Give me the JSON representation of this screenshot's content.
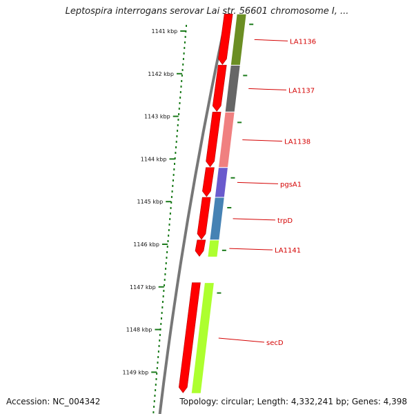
{
  "title": "Leptospira interrogans serovar Lai str. 56601 chromosome I, ...",
  "accession": "Accession: NC_004342",
  "summary": "Topology: circular; Length: 4,332,241 bp; Genes: 4,398",
  "scale": {
    "unit": "kbp",
    "ticks": [
      {
        "kbp": 1141,
        "label": "1141 kbp"
      },
      {
        "kbp": 1142,
        "label": "1142 kbp"
      },
      {
        "kbp": 1143,
        "label": "1143 kbp"
      },
      {
        "kbp": 1144,
        "label": "1144 kbp"
      },
      {
        "kbp": 1145,
        "label": "1145 kbp"
      },
      {
        "kbp": 1146,
        "label": "1146 kbp"
      },
      {
        "kbp": 1147,
        "label": "1147 kbp"
      },
      {
        "kbp": 1148,
        "label": "1148 kbp"
      },
      {
        "kbp": 1149,
        "label": "1149 kbp"
      }
    ]
  },
  "colors": {
    "cds": "#ff0000",
    "backbone": "#777777",
    "tick": "#1a7a1a",
    "label": "#d40000"
  },
  "genes": [
    {
      "label": "LA1136",
      "start_kbp": 1140.6,
      "end_kbp": 1141.8,
      "color": "#6b8e23"
    },
    {
      "label": "LA1137",
      "start_kbp": 1141.8,
      "end_kbp": 1142.9,
      "color": "#666666"
    },
    {
      "label": "LA1138",
      "start_kbp": 1142.9,
      "end_kbp": 1144.2,
      "color": "#f08080"
    },
    {
      "label": "pgsA1",
      "start_kbp": 1144.2,
      "end_kbp": 1144.9,
      "color": "#6a5acd"
    },
    {
      "label": "trpD",
      "start_kbp": 1144.9,
      "end_kbp": 1145.9,
      "color": "#4682b4"
    },
    {
      "label": "LA1141",
      "start_kbp": 1145.9,
      "end_kbp": 1146.3,
      "color": "#adff2f"
    },
    {
      "label": "secD",
      "start_kbp": 1146.9,
      "end_kbp": 1149.5,
      "color": "#adff2f"
    }
  ]
}
